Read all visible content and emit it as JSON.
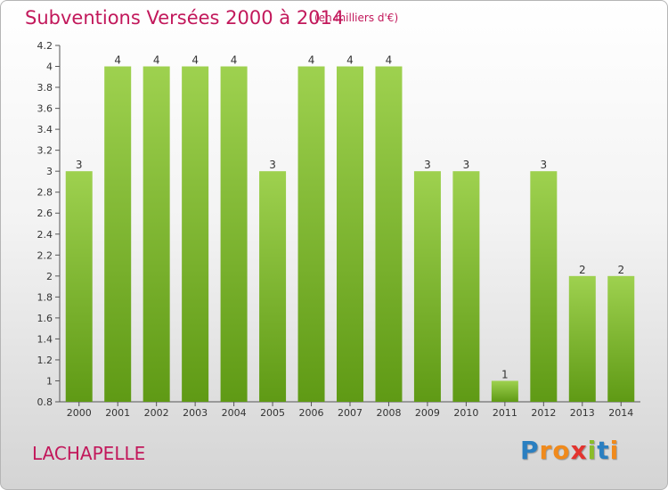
{
  "title": "Subventions Versées 2000 à 2014",
  "subtitle": "(en milliers d'€)",
  "commune": "LACHAPELLE",
  "logo": {
    "letters": [
      "P",
      "r",
      "o",
      "x",
      "i",
      "t",
      "i"
    ],
    "colors": [
      "#2a7fc1",
      "#f08a1c",
      "#f08a1c",
      "#e3342f",
      "#8bbd2a",
      "#2a7fc1",
      "#f08a1c"
    ]
  },
  "colors": {
    "bar_top": "#9ed14f",
    "bar_bottom": "#5f9a15",
    "title": "#c2185b"
  },
  "chart_data": {
    "type": "bar",
    "categories": [
      "2000",
      "2001",
      "2002",
      "2003",
      "2004",
      "2005",
      "2006",
      "2007",
      "2008",
      "2009",
      "2010",
      "2011",
      "2012",
      "2013",
      "2014"
    ],
    "values": [
      3,
      4,
      4,
      4,
      4,
      3,
      4,
      4,
      4,
      3,
      3,
      1,
      3,
      2,
      2
    ],
    "data_labels": [
      "3",
      "4",
      "4",
      "4",
      "4",
      "3",
      "4",
      "4",
      "4",
      "3",
      "3",
      "1",
      "3",
      "2",
      "2"
    ],
    "ylim": [
      0.8,
      4.2
    ],
    "y_ticks": [
      0.8,
      1,
      1.2,
      1.4,
      1.6,
      1.8,
      2,
      2.2,
      2.4,
      2.6,
      2.8,
      3,
      3.2,
      3.4,
      3.6,
      3.8,
      4,
      4.2
    ],
    "y_tick_labels": [
      "0.8",
      "1",
      "1.2",
      "1.4",
      "1.6",
      "1.8",
      "2",
      "2.2",
      "2.4",
      "2.6",
      "2.8",
      "3",
      "3.2",
      "3.4",
      "3.6",
      "3.8",
      "4",
      "4.2"
    ],
    "grid": false,
    "legend": "none"
  }
}
